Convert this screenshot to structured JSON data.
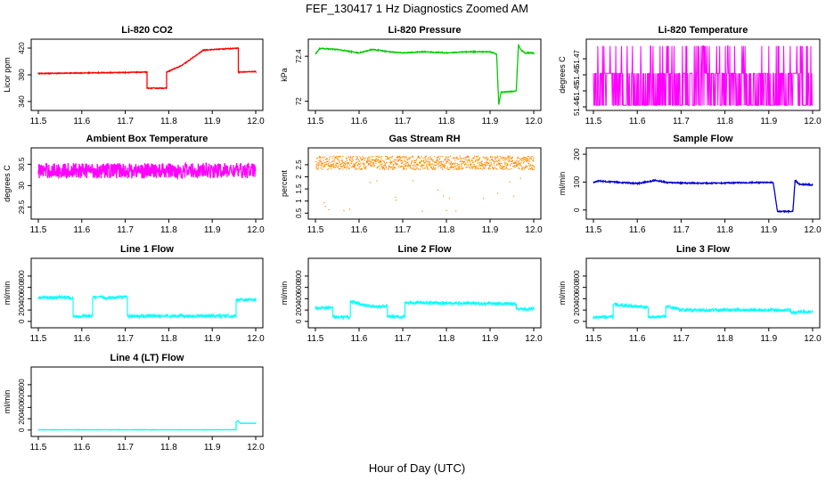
{
  "figure": {
    "title": "FEF_130417 1 Hz Diagnostics Zoomed AM",
    "xlabel": "Hour of Day (UTC)"
  },
  "chart_data": [
    {
      "type": "line",
      "title": "Li-820 CO2",
      "ylabel": "Licor ppm",
      "color": "#ff0000",
      "xlim": [
        11.5,
        12.0
      ],
      "xticks": [
        "11.5",
        "11.6",
        "11.7",
        "11.8",
        "11.9",
        "12.0"
      ],
      "ylim": [
        332,
        428
      ],
      "yticks": [
        340,
        380,
        420
      ],
      "x": [
        11.5,
        11.75,
        11.75,
        11.795,
        11.795,
        11.83,
        11.83,
        11.88,
        11.88,
        11.96,
        11.96,
        12.0
      ],
      "y": [
        382,
        384,
        360,
        360,
        384,
        394,
        394,
        417,
        417,
        420,
        384,
        385
      ],
      "noise": 0.6
    },
    {
      "type": "line",
      "title": "Li-820 Pressure",
      "ylabel": "kPa",
      "color": "#00cc00",
      "xlim": [
        11.5,
        12.0
      ],
      "xticks": [
        "11.5",
        "11.6",
        "11.7",
        "11.8",
        "11.9",
        "12.0"
      ],
      "ylim": [
        71.95,
        72.52
      ],
      "yticks": [
        72.0,
        72.4
      ],
      "x": [
        11.5,
        11.51,
        11.55,
        11.6,
        11.63,
        11.67,
        11.7,
        11.75,
        11.8,
        11.85,
        11.9,
        11.915,
        11.92,
        11.925,
        11.96,
        11.965,
        11.97,
        11.98,
        12.0
      ],
      "y": [
        72.42,
        72.47,
        72.46,
        72.43,
        72.46,
        72.44,
        72.43,
        72.44,
        72.43,
        72.44,
        72.44,
        72.42,
        71.97,
        72.08,
        72.09,
        72.5,
        72.46,
        72.43,
        72.43
      ],
      "noise": 0.004
    },
    {
      "type": "digital",
      "title": "Li-820 Temperature",
      "ylabel": "degrees C",
      "color": "#ff00ff",
      "xlim": [
        11.5,
        12.0
      ],
      "xticks": [
        "11.5",
        "11.6",
        "11.7",
        "11.8",
        "11.9",
        "12.0"
      ],
      "ylim": [
        51.44,
        51.48
      ],
      "yticks": [
        51.44,
        51.45,
        51.46,
        51.47
      ],
      "levels": [
        51.441,
        51.461,
        51.478
      ]
    },
    {
      "type": "line",
      "title": "Ambient Box Temperature",
      "ylabel": "degrees C",
      "color": "#ff00ff",
      "xlim": [
        11.5,
        12.0
      ],
      "xticks": [
        "11.5",
        "11.6",
        "11.7",
        "11.8",
        "11.9",
        "12.0"
      ],
      "ylim": [
        29.3,
        30.8
      ],
      "yticks": [
        29.5,
        30.0,
        30.5
      ],
      "x": [
        11.5,
        12.0
      ],
      "y": [
        30.35,
        30.35
      ],
      "noise": 0.18
    },
    {
      "type": "dotted",
      "title": "Gas Stream RH",
      "ylabel": "percent",
      "color": "#ff8c00",
      "xlim": [
        11.5,
        12.0
      ],
      "xticks": [
        "11.5",
        "11.6",
        "11.7",
        "11.8",
        "11.9",
        "12.0"
      ],
      "ylim": [
        0.4,
        3.05
      ],
      "yticks": [
        0.5,
        1.0,
        1.5,
        2.0,
        2.5
      ],
      "x": [
        11.5,
        12.0
      ],
      "y": [
        2.6,
        2.6
      ],
      "noise": 0.28
    },
    {
      "type": "line",
      "title": "Sample Flow",
      "ylabel": "ml/min",
      "color": "#0000cd",
      "xlim": [
        11.5,
        12.0
      ],
      "xticks": [
        "11.5",
        "11.6",
        "11.7",
        "11.8",
        "11.9",
        "12.0"
      ],
      "ylim": [
        -20,
        210
      ],
      "yticks": [
        0,
        100,
        200
      ],
      "x": [
        11.5,
        11.51,
        11.6,
        11.64,
        11.67,
        11.75,
        11.91,
        11.92,
        11.955,
        11.96,
        11.97,
        12.0
      ],
      "y": [
        98,
        104,
        95,
        106,
        98,
        96,
        99,
        -5,
        -5,
        106,
        92,
        90
      ],
      "noise": 2
    },
    {
      "type": "line",
      "title": "Line 1 Flow",
      "ylabel": "ml/min",
      "color": "#00ffff",
      "xlim": [
        11.5,
        12.0
      ],
      "xticks": [
        "11.5",
        "11.6",
        "11.7",
        "11.8",
        "11.9",
        "12.0"
      ],
      "ylim": [
        -50,
        1050
      ],
      "yticks": [
        0,
        200,
        400,
        600,
        800
      ],
      "x": [
        11.5,
        11.58,
        11.58,
        11.625,
        11.625,
        11.705,
        11.705,
        11.955,
        11.955,
        12.0
      ],
      "y": [
        420,
        420,
        90,
        90,
        420,
        420,
        95,
        95,
        380,
        380
      ],
      "noise": 30
    },
    {
      "type": "line",
      "title": "Line 2 Flow",
      "ylabel": "ml/min",
      "color": "#00ffff",
      "xlim": [
        11.5,
        12.0
      ],
      "xticks": [
        "11.5",
        "11.6",
        "11.7",
        "11.8",
        "11.9",
        "12.0"
      ],
      "ylim": [
        -50,
        1050
      ],
      "yticks": [
        0,
        200,
        400,
        600,
        800
      ],
      "x": [
        11.5,
        11.54,
        11.54,
        11.58,
        11.58,
        11.62,
        11.625,
        11.665,
        11.665,
        11.705,
        11.705,
        11.96,
        11.96,
        12.0
      ],
      "y": [
        240,
        240,
        75,
        75,
        350,
        280,
        270,
        270,
        85,
        85,
        330,
        310,
        220,
        220
      ],
      "noise": 28
    },
    {
      "type": "line",
      "title": "Line 3 Flow",
      "ylabel": "ml/min",
      "color": "#00ffff",
      "xlim": [
        11.5,
        12.0
      ],
      "xticks": [
        "11.5",
        "11.6",
        "11.7",
        "11.8",
        "11.9",
        "12.0"
      ],
      "ylim": [
        -50,
        1050
      ],
      "yticks": [
        0,
        200,
        400,
        600,
        800
      ],
      "x": [
        11.5,
        11.545,
        11.545,
        11.59,
        11.625,
        11.625,
        11.665,
        11.665,
        11.7,
        11.95,
        11.95,
        12.0
      ],
      "y": [
        75,
        80,
        300,
        270,
        250,
        80,
        80,
        270,
        200,
        200,
        150,
        180
      ],
      "noise": 28
    },
    {
      "type": "line",
      "title": "Line 4 (LT) Flow",
      "ylabel": "ml/min",
      "color": "#00ffff",
      "xlim": [
        11.5,
        12.0
      ],
      "xticks": [
        "11.5",
        "11.6",
        "11.7",
        "11.8",
        "11.9",
        "12.0"
      ],
      "ylim": [
        -50,
        1050
      ],
      "yticks": [
        0,
        200,
        400,
        600,
        800
      ],
      "x": [
        11.5,
        11.955,
        11.955,
        11.96,
        11.965,
        12.0
      ],
      "y": [
        5,
        5,
        150,
        160,
        120,
        120
      ],
      "noise": 3
    }
  ]
}
